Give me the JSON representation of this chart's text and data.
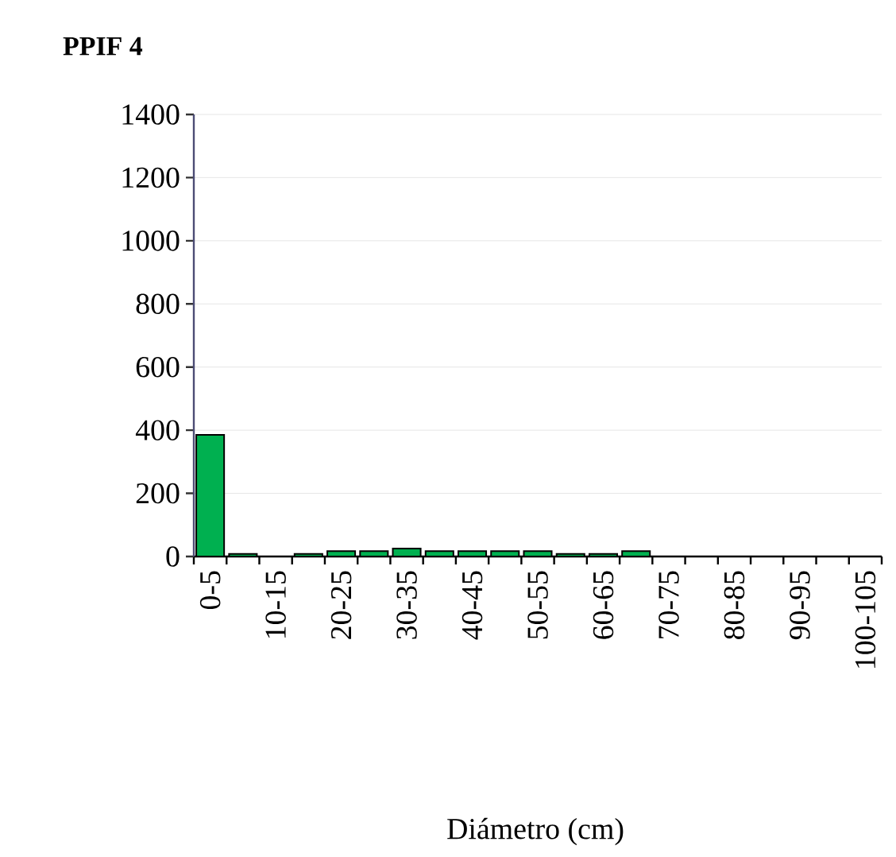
{
  "chart_data": {
    "type": "bar",
    "title": "PPIF 4",
    "xlabel": "Diámetro (cm)",
    "categories": [
      "0-5",
      null,
      "10-15",
      null,
      "20-25",
      null,
      "30-35",
      null,
      "40-45",
      null,
      "50-55",
      null,
      "60-65",
      null,
      "70-75",
      null,
      "80-85",
      null,
      "90-95",
      null,
      "100-105"
    ],
    "values": [
      385,
      8,
      0,
      8,
      17,
      17,
      25,
      17,
      17,
      17,
      17,
      8,
      8,
      17,
      0,
      0,
      0,
      0,
      0,
      0,
      0
    ],
    "color": "#00b050",
    "ylim": [
      0,
      1400
    ],
    "yticks": [
      0,
      200,
      400,
      600,
      800,
      1000,
      1200,
      1400
    ],
    "grid": "y"
  }
}
